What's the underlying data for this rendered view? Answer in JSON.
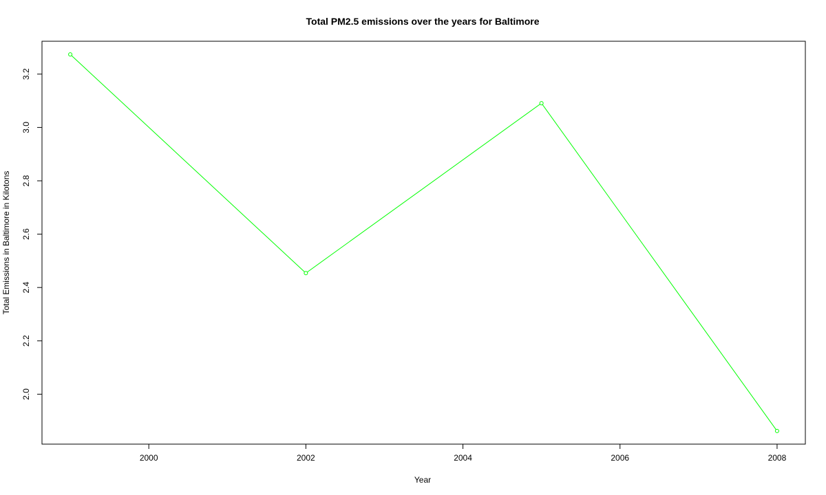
{
  "chart_data": {
    "type": "line",
    "title": "Total PM2.5 emissions over the years for Baltimore",
    "xlabel": "Year",
    "ylabel": "Total Emissions in Baltimore in Kilotons",
    "x": [
      1999,
      2002,
      2005,
      2008
    ],
    "series": [
      {
        "values": [
          3.274,
          2.454,
          3.091,
          1.862
        ],
        "color": "#00ff00"
      }
    ],
    "xticks": [
      2000,
      2002,
      2004,
      2006,
      2008
    ],
    "xtick_labels": [
      "2000",
      "2002",
      "2004",
      "2006",
      "2008"
    ],
    "yticks": [
      2.0,
      2.2,
      2.4,
      2.6,
      2.8,
      3.0,
      3.2
    ],
    "ytick_labels": [
      "2.0",
      "2.2",
      "2.4",
      "2.6",
      "2.8",
      "3.0",
      "3.2"
    ],
    "xlim": [
      1998.64,
      2008.36
    ],
    "ylim": [
      1.8128,
      3.3232
    ],
    "grid": false,
    "marker": "open-circle"
  }
}
